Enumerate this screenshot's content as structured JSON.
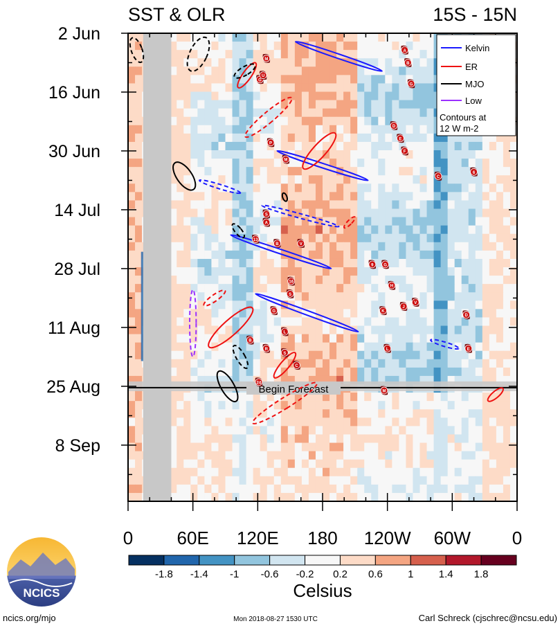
{
  "chart_data": {
    "type": "heatmap",
    "title_left": "SST & OLR",
    "title_right": "15S - 15N",
    "y_ticks": [
      "2 Jun",
      "16 Jun",
      "30 Jun",
      "14 Jul",
      "28 Jul",
      "11 Aug",
      "25 Aug",
      "8 Sep"
    ],
    "y_tick_day_offsets": [
      0,
      14,
      28,
      42,
      56,
      70,
      84,
      98
    ],
    "y_range_days": [
      0,
      110
    ],
    "x_ticks": [
      "0",
      "60E",
      "120E",
      "180",
      "120W",
      "60W",
      "0"
    ],
    "x_tick_lon": [
      0,
      60,
      120,
      180,
      240,
      300,
      360
    ],
    "x_range_lon": [
      0,
      360
    ],
    "land_mask_lon": [
      14,
      40
    ],
    "forecast_start_day": 84,
    "forecast_label": "Begin Forecast",
    "colorbar": {
      "label": "Celsius",
      "tick_labels": [
        "-1.8",
        "-1.4",
        "-1",
        "-0.6",
        "-0.2",
        "0.2",
        "0.6",
        "1",
        "1.4",
        "1.8"
      ],
      "colors": [
        "#053061",
        "#2166ac",
        "#4393c3",
        "#92c5de",
        "#d1e5f0",
        "#f7f7f7",
        "#fddbc7",
        "#f4a582",
        "#d6604d",
        "#b2182b",
        "#67001f"
      ]
    },
    "legend": {
      "items": [
        {
          "label": "Kelvin",
          "color": "#1a1aff"
        },
        {
          "label": "ER",
          "color": "#ee1111"
        },
        {
          "label": "MJO",
          "color": "#000000"
        },
        {
          "label": "Low",
          "color": "#9b30ff"
        }
      ],
      "note_line1": "Contours at",
      "note_line2": "12 W m-2"
    },
    "contours": [
      {
        "type": "Kelvin",
        "dashed": false,
        "points": [
          [
            155,
            2
          ],
          [
            235,
            9
          ]
        ]
      },
      {
        "type": "Kelvin",
        "dashed": false,
        "points": [
          [
            138,
            28
          ],
          [
            222,
            35
          ]
        ]
      },
      {
        "type": "Kelvin",
        "dashed": true,
        "points": [
          [
            66,
            35
          ],
          [
            104,
            38
          ]
        ]
      },
      {
        "type": "Kelvin",
        "dashed": true,
        "points": [
          [
            124,
            41
          ],
          [
            195,
            46
          ]
        ]
      },
      {
        "type": "Kelvin",
        "dashed": false,
        "points": [
          [
            95,
            48
          ],
          [
            188,
            56
          ]
        ]
      },
      {
        "type": "Kelvin",
        "dashed": false,
        "points": [
          [
            118,
            62
          ],
          [
            213,
            71
          ]
        ]
      },
      {
        "type": "Kelvin",
        "dashed": true,
        "points": [
          [
            280,
            73
          ],
          [
            306,
            75
          ]
        ]
      },
      {
        "type": "ER",
        "dashed": false,
        "lon": 110,
        "day": 10,
        "rx": 4,
        "ry": 14,
        "rot": 35
      },
      {
        "type": "ER",
        "dashed": true,
        "lon": 130,
        "day": 20,
        "rx": 5,
        "ry": 28,
        "rot": 50
      },
      {
        "type": "ER",
        "dashed": false,
        "lon": 177,
        "day": 28,
        "rx": 6,
        "ry": 22,
        "rot": 42
      },
      {
        "type": "ER",
        "dashed": true,
        "lon": 205,
        "day": 45,
        "rx": 2,
        "ry": 7,
        "rot": 45
      },
      {
        "type": "ER",
        "dashed": true,
        "lon": 80,
        "day": 63,
        "rx": 3,
        "ry": 12,
        "rot": 55
      },
      {
        "type": "ER",
        "dashed": false,
        "lon": 95,
        "day": 70,
        "rx": 7,
        "ry": 27,
        "rot": 48
      },
      {
        "type": "ER",
        "dashed": false,
        "lon": 145,
        "day": 79,
        "rx": 4,
        "ry": 15,
        "rot": 40
      },
      {
        "type": "ER",
        "dashed": true,
        "lon": 145,
        "day": 88,
        "rx": 5,
        "ry": 35,
        "rot": 58
      },
      {
        "type": "ER",
        "dashed": false,
        "lon": 340,
        "day": 86,
        "rx": 3,
        "ry": 9,
        "rot": 50
      },
      {
        "type": "MJO",
        "dashed": true,
        "lon": 8,
        "day": 4,
        "rx": 5,
        "ry": 12,
        "rot": -20
      },
      {
        "type": "MJO",
        "dashed": true,
        "lon": 65,
        "day": 5,
        "rx": 8,
        "ry": 17,
        "rot": 25
      },
      {
        "type": "MJO",
        "dashed": true,
        "lon": 108,
        "day": 9,
        "rx": 4,
        "ry": 11,
        "rot": 60
      },
      {
        "type": "MJO",
        "dashed": false,
        "lon": 52,
        "day": 34,
        "rx": 7,
        "ry": 15,
        "rot": -35
      },
      {
        "type": "MJO",
        "dashed": false,
        "lon": 145,
        "day": 39,
        "rx": 2,
        "ry": 4,
        "rot": -20
      },
      {
        "type": "MJO",
        "dashed": true,
        "lon": 102,
        "day": 47,
        "rx": 3,
        "ry": 8,
        "rot": -40
      },
      {
        "type": "MJO",
        "dashed": true,
        "lon": 104,
        "day": 77,
        "rx": 4,
        "ry": 12,
        "rot": -30
      },
      {
        "type": "MJO",
        "dashed": false,
        "lon": 92,
        "day": 84,
        "rx": 6,
        "ry": 16,
        "rot": -30
      },
      {
        "type": "Low",
        "dashed": true,
        "lon": 60,
        "day": 69,
        "rx": 3,
        "ry": 31,
        "rot": 0
      }
    ],
    "storms": [
      {
        "label": "M",
        "lon": 128,
        "day": 6
      },
      {
        "label": "A",
        "lon": 256,
        "day": 4
      },
      {
        "label": "B",
        "lon": 259,
        "day": 7
      },
      {
        "label": "G",
        "lon": 122,
        "day": 11
      },
      {
        "label": "U",
        "lon": 125,
        "day": 10
      },
      {
        "label": "G",
        "lon": 262,
        "day": 12
      },
      {
        "label": "D",
        "lon": 246,
        "day": 22
      },
      {
        "label": "E",
        "lon": 252,
        "day": 25
      },
      {
        "label": "F",
        "lon": 256,
        "day": 28
      },
      {
        "label": "P",
        "lon": 132,
        "day": 26
      },
      {
        "label": "M",
        "lon": 146,
        "day": 30
      },
      {
        "label": "C",
        "lon": 287,
        "day": 34
      },
      {
        "label": "6",
        "lon": 320,
        "day": 33
      },
      {
        "label": "S",
        "lon": 128,
        "day": 43
      },
      {
        "label": "A",
        "lon": 128,
        "day": 45
      },
      {
        "label": "13",
        "lon": 118,
        "day": 49
      },
      {
        "label": "B",
        "lon": 138,
        "day": 50
      },
      {
        "label": "V",
        "lon": 160,
        "day": 50
      },
      {
        "label": "9",
        "lon": 226,
        "day": 55
      },
      {
        "label": "G",
        "lon": 238,
        "day": 55
      },
      {
        "label": "16",
        "lon": 151,
        "day": 59
      },
      {
        "label": "H",
        "lon": 244,
        "day": 60
      },
      {
        "label": "S",
        "lon": 150,
        "day": 62
      },
      {
        "label": "G",
        "lon": 135,
        "day": 66
      },
      {
        "label": "J",
        "lon": 255,
        "day": 65
      },
      {
        "label": "V",
        "lon": 266,
        "day": 64
      },
      {
        "label": "K",
        "lon": 236,
        "day": 66
      },
      {
        "label": "D",
        "lon": 313,
        "day": 67
      },
      {
        "label": "L",
        "lon": 145,
        "day": 71
      },
      {
        "label": "B",
        "lon": 113,
        "day": 73
      },
      {
        "label": "R",
        "lon": 128,
        "day": 75
      },
      {
        "label": "S",
        "lon": 145,
        "day": 76
      },
      {
        "label": "L",
        "lon": 240,
        "day": 75
      },
      {
        "label": "E",
        "lon": 315,
        "day": 75
      },
      {
        "label": "C",
        "lon": 156,
        "day": 79
      },
      {
        "label": "24",
        "lon": 121,
        "day": 83
      },
      {
        "label": "M",
        "lon": 237,
        "day": 85
      }
    ]
  },
  "logo": {
    "label": "NCICS"
  },
  "footer": {
    "url": "ncics.org/mjo",
    "timestamp": "Mon 2018-08-27 1530 UTC",
    "author": "Carl Schreck (cjschrec@ncsu.edu)"
  }
}
